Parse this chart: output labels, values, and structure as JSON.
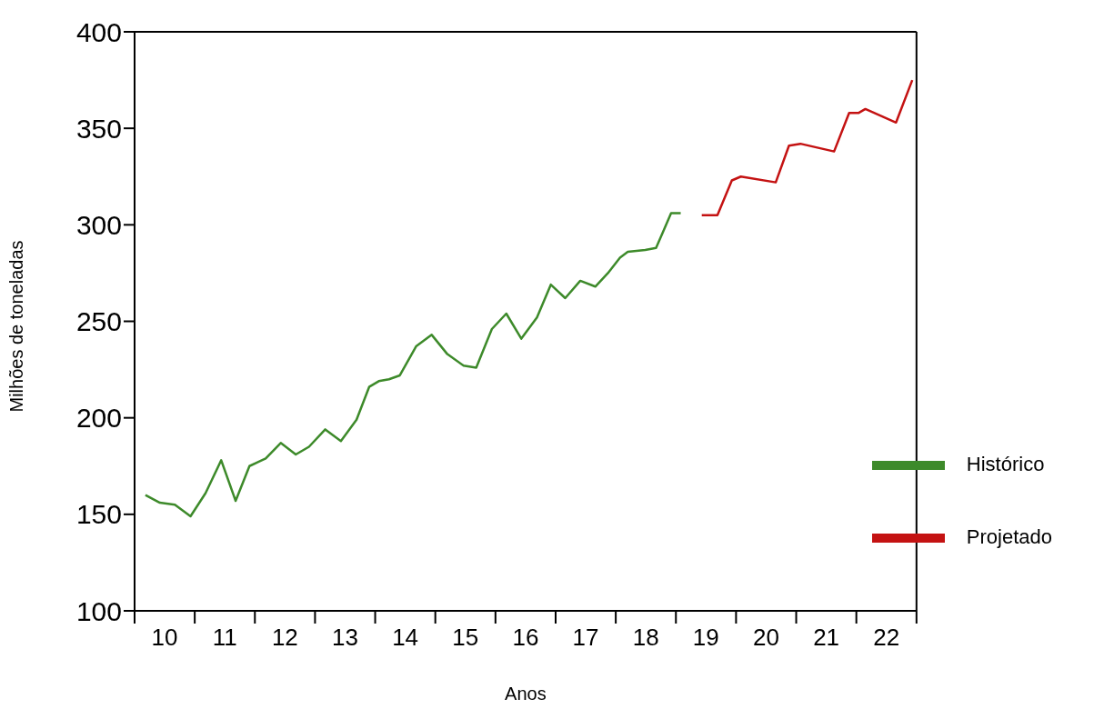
{
  "chart_data": {
    "type": "line",
    "xlabel": "Anos",
    "ylabel": "Milhões de toneladas",
    "xlim": [
      10,
      23
    ],
    "ylim": [
      100,
      400
    ],
    "xticks": [
      {
        "value": 10,
        "label": null
      },
      {
        "value": 10.5,
        "label": "10"
      },
      {
        "value": 11,
        "label": null
      },
      {
        "value": 11.5,
        "label": "11"
      },
      {
        "value": 12,
        "label": null
      },
      {
        "value": 12.5,
        "label": "12"
      },
      {
        "value": 13,
        "label": null
      },
      {
        "value": 13.5,
        "label": "13"
      },
      {
        "value": 14,
        "label": null
      },
      {
        "value": 14.5,
        "label": "14"
      },
      {
        "value": 15,
        "label": null
      },
      {
        "value": 15.5,
        "label": "15"
      },
      {
        "value": 16,
        "label": null
      },
      {
        "value": 16.5,
        "label": "16"
      },
      {
        "value": 17,
        "label": null
      },
      {
        "value": 17.5,
        "label": "17"
      },
      {
        "value": 18,
        "label": null
      },
      {
        "value": 18.5,
        "label": "18"
      },
      {
        "value": 19,
        "label": null
      },
      {
        "value": 19.5,
        "label": "19"
      },
      {
        "value": 20,
        "label": null
      },
      {
        "value": 20.5,
        "label": "20"
      },
      {
        "value": 21,
        "label": null
      },
      {
        "value": 21.5,
        "label": "21"
      },
      {
        "value": 22,
        "label": null
      },
      {
        "value": 22.5,
        "label": "22"
      },
      {
        "value": 23,
        "label": null
      }
    ],
    "yticks": [
      100,
      150,
      200,
      250,
      300,
      350,
      400
    ],
    "grid": false,
    "legend": "bottom right",
    "marker": "none",
    "line_style": "solid",
    "series": [
      {
        "name": "Histórico",
        "color": "#3d8a2a",
        "x": [
          10.18,
          10.42,
          10.67,
          10.93,
          11.18,
          11.44,
          11.68,
          11.91,
          12.18,
          12.43,
          12.68,
          12.9,
          13.17,
          13.43,
          13.69,
          13.9,
          14.06,
          14.23,
          14.41,
          14.68,
          14.94,
          15.2,
          15.47,
          15.68,
          15.94,
          16.18,
          16.43,
          16.69,
          16.92,
          17.16,
          17.41,
          17.66,
          17.87,
          18.07,
          18.2,
          18.49,
          18.67,
          18.92,
          19.08
        ],
        "values": [
          160,
          156,
          155,
          149,
          161,
          178,
          157,
          175,
          179,
          187,
          181,
          185,
          194,
          188,
          199,
          216,
          219,
          220,
          222,
          237,
          243,
          233,
          227,
          226,
          246,
          254,
          241,
          252,
          269,
          262,
          271,
          268,
          275,
          283,
          286,
          287,
          288,
          306,
          306
        ]
      },
      {
        "name": "Projetado",
        "color": "#c41212",
        "x": [
          19.43,
          19.69,
          19.93,
          20.08,
          20.66,
          20.88,
          21.07,
          21.63,
          21.88,
          22.04,
          22.15,
          22.66,
          22.93
        ],
        "values": [
          305,
          305,
          323,
          325,
          322,
          341,
          342,
          338,
          358,
          358,
          360,
          353,
          375
        ]
      }
    ]
  }
}
